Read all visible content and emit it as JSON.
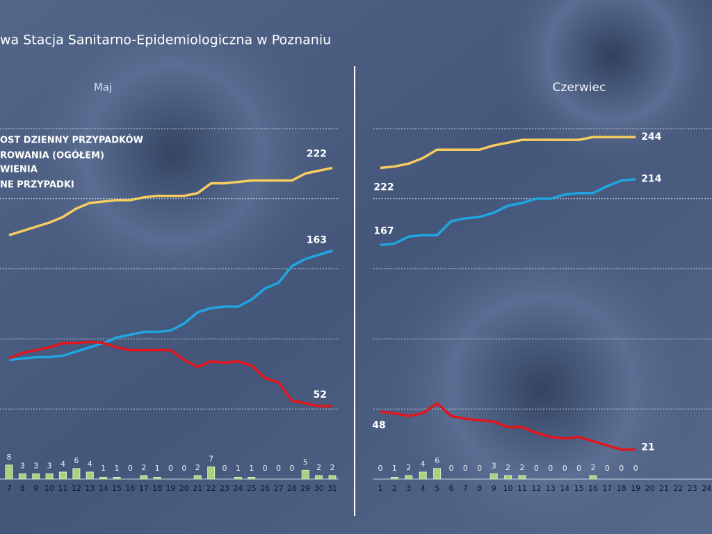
{
  "header": {
    "title": "wa Stacja Sanitarno-Epidemiologiczna w Poznaniu"
  },
  "chart_data": [
    {
      "type": "combo",
      "subtitle": "Maj",
      "categories": [
        "7",
        "8",
        "9",
        "10",
        "11",
        "12",
        "13",
        "14",
        "15",
        "16",
        "17",
        "18",
        "19",
        "20",
        "21",
        "22",
        "23",
        "24",
        "25",
        "26",
        "27",
        "28",
        "29",
        "30",
        "31"
      ],
      "ylim": [
        0,
        250
      ],
      "yticks": [
        0,
        50,
        100,
        150,
        200,
        250
      ],
      "y2lim": [
        0,
        200
      ],
      "grid": true,
      "series": [
        {
          "name": "OST DZIENNY PRZYPADKÓW",
          "type": "bar",
          "axis": "y2",
          "color": "#a6d27f",
          "values": [
            8,
            3,
            3,
            3,
            4,
            6,
            4,
            1,
            1,
            0,
            2,
            1,
            0,
            0,
            2,
            7,
            0,
            1,
            1,
            0,
            0,
            0,
            5,
            2,
            2
          ]
        },
        {
          "name": "ROWANIA (OGÓŁEM)",
          "type": "line",
          "color": "#f7cd5f",
          "values": [
            174,
            177,
            180,
            183,
            187,
            193,
            197,
            198,
            199,
            199,
            201,
            202,
            202,
            202,
            204,
            211,
            211,
            212,
            213,
            213,
            213,
            213,
            218,
            220,
            222
          ]
        },
        {
          "name": "WIENIA",
          "type": "line",
          "color": "#1ea6e3",
          "values": [
            85,
            86,
            87,
            87,
            88,
            91,
            94,
            97,
            101,
            103,
            105,
            105,
            106,
            111,
            119,
            122,
            123,
            123,
            128,
            136,
            140,
            152,
            157,
            160,
            163
          ]
        },
        {
          "name": "NE PRZYPADKI",
          "type": "line",
          "color": "#e3141c",
          "values": [
            86,
            90,
            92,
            94,
            97,
            97,
            98,
            97,
            94,
            92,
            92,
            92,
            92,
            85,
            80,
            84,
            83,
            84,
            81,
            72,
            69,
            56,
            54,
            52,
            52
          ]
        }
      ]
    },
    {
      "type": "combo",
      "subtitle": "Czerwiec",
      "categories": [
        "1",
        "2",
        "3",
        "4",
        "5",
        "6",
        "7",
        "8",
        "9",
        "10",
        "11",
        "12",
        "13",
        "14",
        "15",
        "16",
        "17",
        "18",
        "19",
        "20",
        "21",
        "22",
        "23",
        "24"
      ],
      "ylim": [
        0,
        250
      ],
      "yticks": [
        0,
        50,
        100,
        150,
        200,
        250
      ],
      "y2lim": [
        0,
        200
      ],
      "grid": true,
      "series": [
        {
          "type": "bar",
          "axis": "y2",
          "color": "#a6d27f",
          "values": [
            0,
            1,
            2,
            4,
            6,
            0,
            0,
            0,
            3,
            2,
            2,
            0,
            0,
            0,
            0,
            2,
            0,
            0,
            0,
            null,
            null,
            null,
            null,
            null
          ]
        },
        {
          "type": "line",
          "color": "#f7cd5f",
          "values": [
            222,
            223,
            225,
            229,
            235,
            235,
            235,
            235,
            238,
            240,
            242,
            242,
            242,
            242,
            242,
            244,
            244,
            244,
            244,
            null,
            null,
            null,
            null,
            null
          ]
        },
        {
          "type": "line",
          "color": "#1ea6e3",
          "values": [
            167,
            168,
            173,
            174,
            174,
            184,
            186,
            187,
            190,
            195,
            197,
            200,
            200,
            203,
            204,
            204,
            209,
            213,
            214,
            null,
            null,
            null,
            null,
            null
          ]
        },
        {
          "type": "line",
          "color": "#e3141c",
          "values": [
            48,
            47,
            45,
            47,
            54,
            45,
            43,
            42,
            41,
            37,
            37,
            33,
            30,
            29,
            30,
            27,
            24,
            21,
            21,
            null,
            null,
            null,
            null,
            null
          ]
        }
      ]
    }
  ]
}
